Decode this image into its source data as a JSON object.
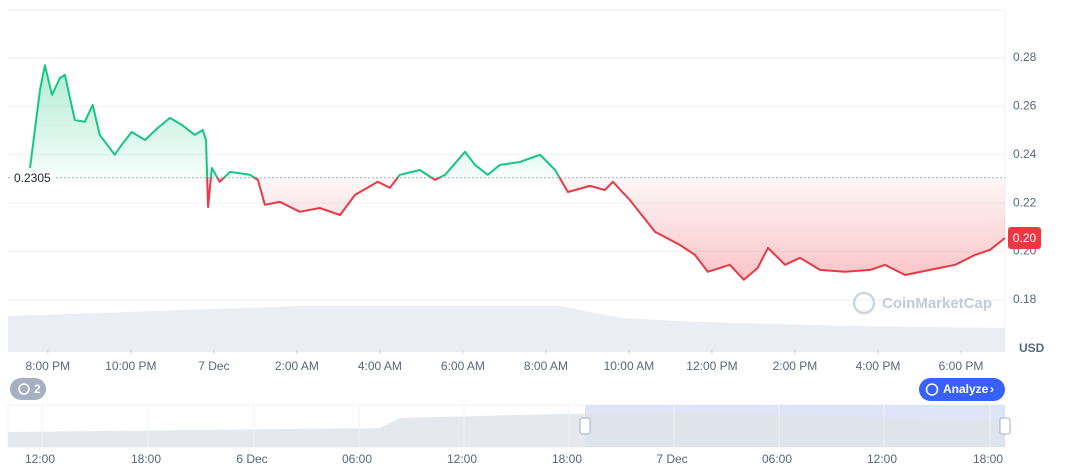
{
  "chart_data": {
    "type": "line",
    "baseline": 0.2305,
    "currency": "USD",
    "last_price_label": "0.20",
    "watermark": "CoinMarketCap",
    "color_up": "#16c784",
    "color_down": "#ea3943",
    "x": [
      19.57,
      19.81,
      19.93,
      20.1,
      20.29,
      20.41,
      20.65,
      20.89,
      21.08,
      21.25,
      21.61,
      21.78,
      22.02,
      22.34,
      22.65,
      22.94,
      23.23,
      23.54,
      23.73,
      23.81,
      23.86,
      23.95,
      24.14,
      24.39,
      24.87,
      25.06,
      25.23,
      25.59,
      26.07,
      26.55,
      27.04,
      27.4,
      27.95,
      28.24,
      28.48,
      28.96,
      29.33,
      29.57,
      30.05,
      30.29,
      30.6,
      30.89,
      31.37,
      31.86,
      32.22,
      32.53,
      33.06,
      33.42,
      33.61,
      34.02,
      34.63,
      35.23,
      35.59,
      35.9,
      36.43,
      36.77,
      37.1,
      37.35,
      37.76,
      38.12,
      38.6,
      39.2,
      39.81,
      40.17,
      40.65,
      41.25,
      41.86,
      42.34,
      42.7,
      43.06
    ],
    "values": [
      0.2345,
      0.2668,
      0.277,
      0.2647,
      0.2717,
      0.273,
      0.2544,
      0.2536,
      0.2606,
      0.2482,
      0.24,
      0.2441,
      0.2494,
      0.2461,
      0.2511,
      0.2552,
      0.2523,
      0.2482,
      0.2502,
      0.2461,
      0.2184,
      0.2345,
      0.2288,
      0.2329,
      0.2317,
      0.2296,
      0.2193,
      0.2205,
      0.2164,
      0.218,
      0.2151,
      0.2234,
      0.2288,
      0.2263,
      0.2317,
      0.2337,
      0.2296,
      0.2317,
      0.2412,
      0.2358,
      0.2317,
      0.2358,
      0.237,
      0.24,
      0.2337,
      0.2246,
      0.2271,
      0.2254,
      0.2288,
      0.2213,
      0.2081,
      0.2027,
      0.1986,
      0.1916,
      0.1945,
      0.1883,
      0.1932,
      0.2015,
      0.1945,
      0.1974,
      0.1924,
      0.1916,
      0.1924,
      0.1945,
      0.1903,
      0.1924,
      0.1945,
      0.1986,
      0.2007,
      0.2056
    ],
    "xlim": [
      19.04,
      43.06
    ],
    "xticks": [
      {
        "value": 20,
        "label": "8:00 PM"
      },
      {
        "value": 22,
        "label": "10:00 PM"
      },
      {
        "value": 24,
        "label": "7 Dec"
      },
      {
        "value": 26,
        "label": "2:00 AM"
      },
      {
        "value": 28,
        "label": "4:00 AM"
      },
      {
        "value": 30,
        "label": "6:00 AM"
      },
      {
        "value": 32,
        "label": "8:00 AM"
      },
      {
        "value": 34,
        "label": "10:00 AM"
      },
      {
        "value": 36,
        "label": "12:00 PM"
      },
      {
        "value": 38,
        "label": "2:00 PM"
      },
      {
        "value": 40,
        "label": "4:00 PM"
      },
      {
        "value": 42,
        "label": "6:00 PM"
      }
    ],
    "ylim": [
      0.1593,
      0.2998
    ],
    "yticks": [
      0.18,
      {
        "value": 0.2,
        "label": "0.20"
      },
      0.22,
      0.24,
      0.26,
      0.28
    ],
    "grid": true
  },
  "controls": {
    "history_count": "2",
    "analyze": "Analyze"
  },
  "navigator": {
    "labels": [
      "12:00",
      "18:00",
      "6 Dec",
      "06:00",
      "12:00",
      "18:00",
      "7 Dec",
      "06:00",
      "12:00",
      "18:00"
    ]
  }
}
